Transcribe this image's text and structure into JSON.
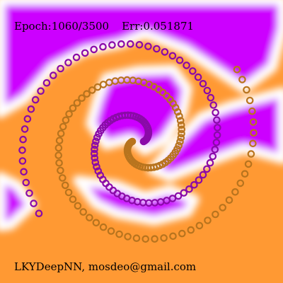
{
  "status": {
    "epoch_label": "Epoch:1060/3500",
    "error_label": "Err:0.051871"
  },
  "footer": {
    "credit": "LKYDeepNN, mosdeo@gmail.com"
  },
  "colors": {
    "class_a_region": "#cc00ff",
    "class_b_region": "#ff9933",
    "boundary": "#ffffff",
    "class_a_points": "#8a0aa8",
    "class_b_points": "#b8741e"
  }
}
